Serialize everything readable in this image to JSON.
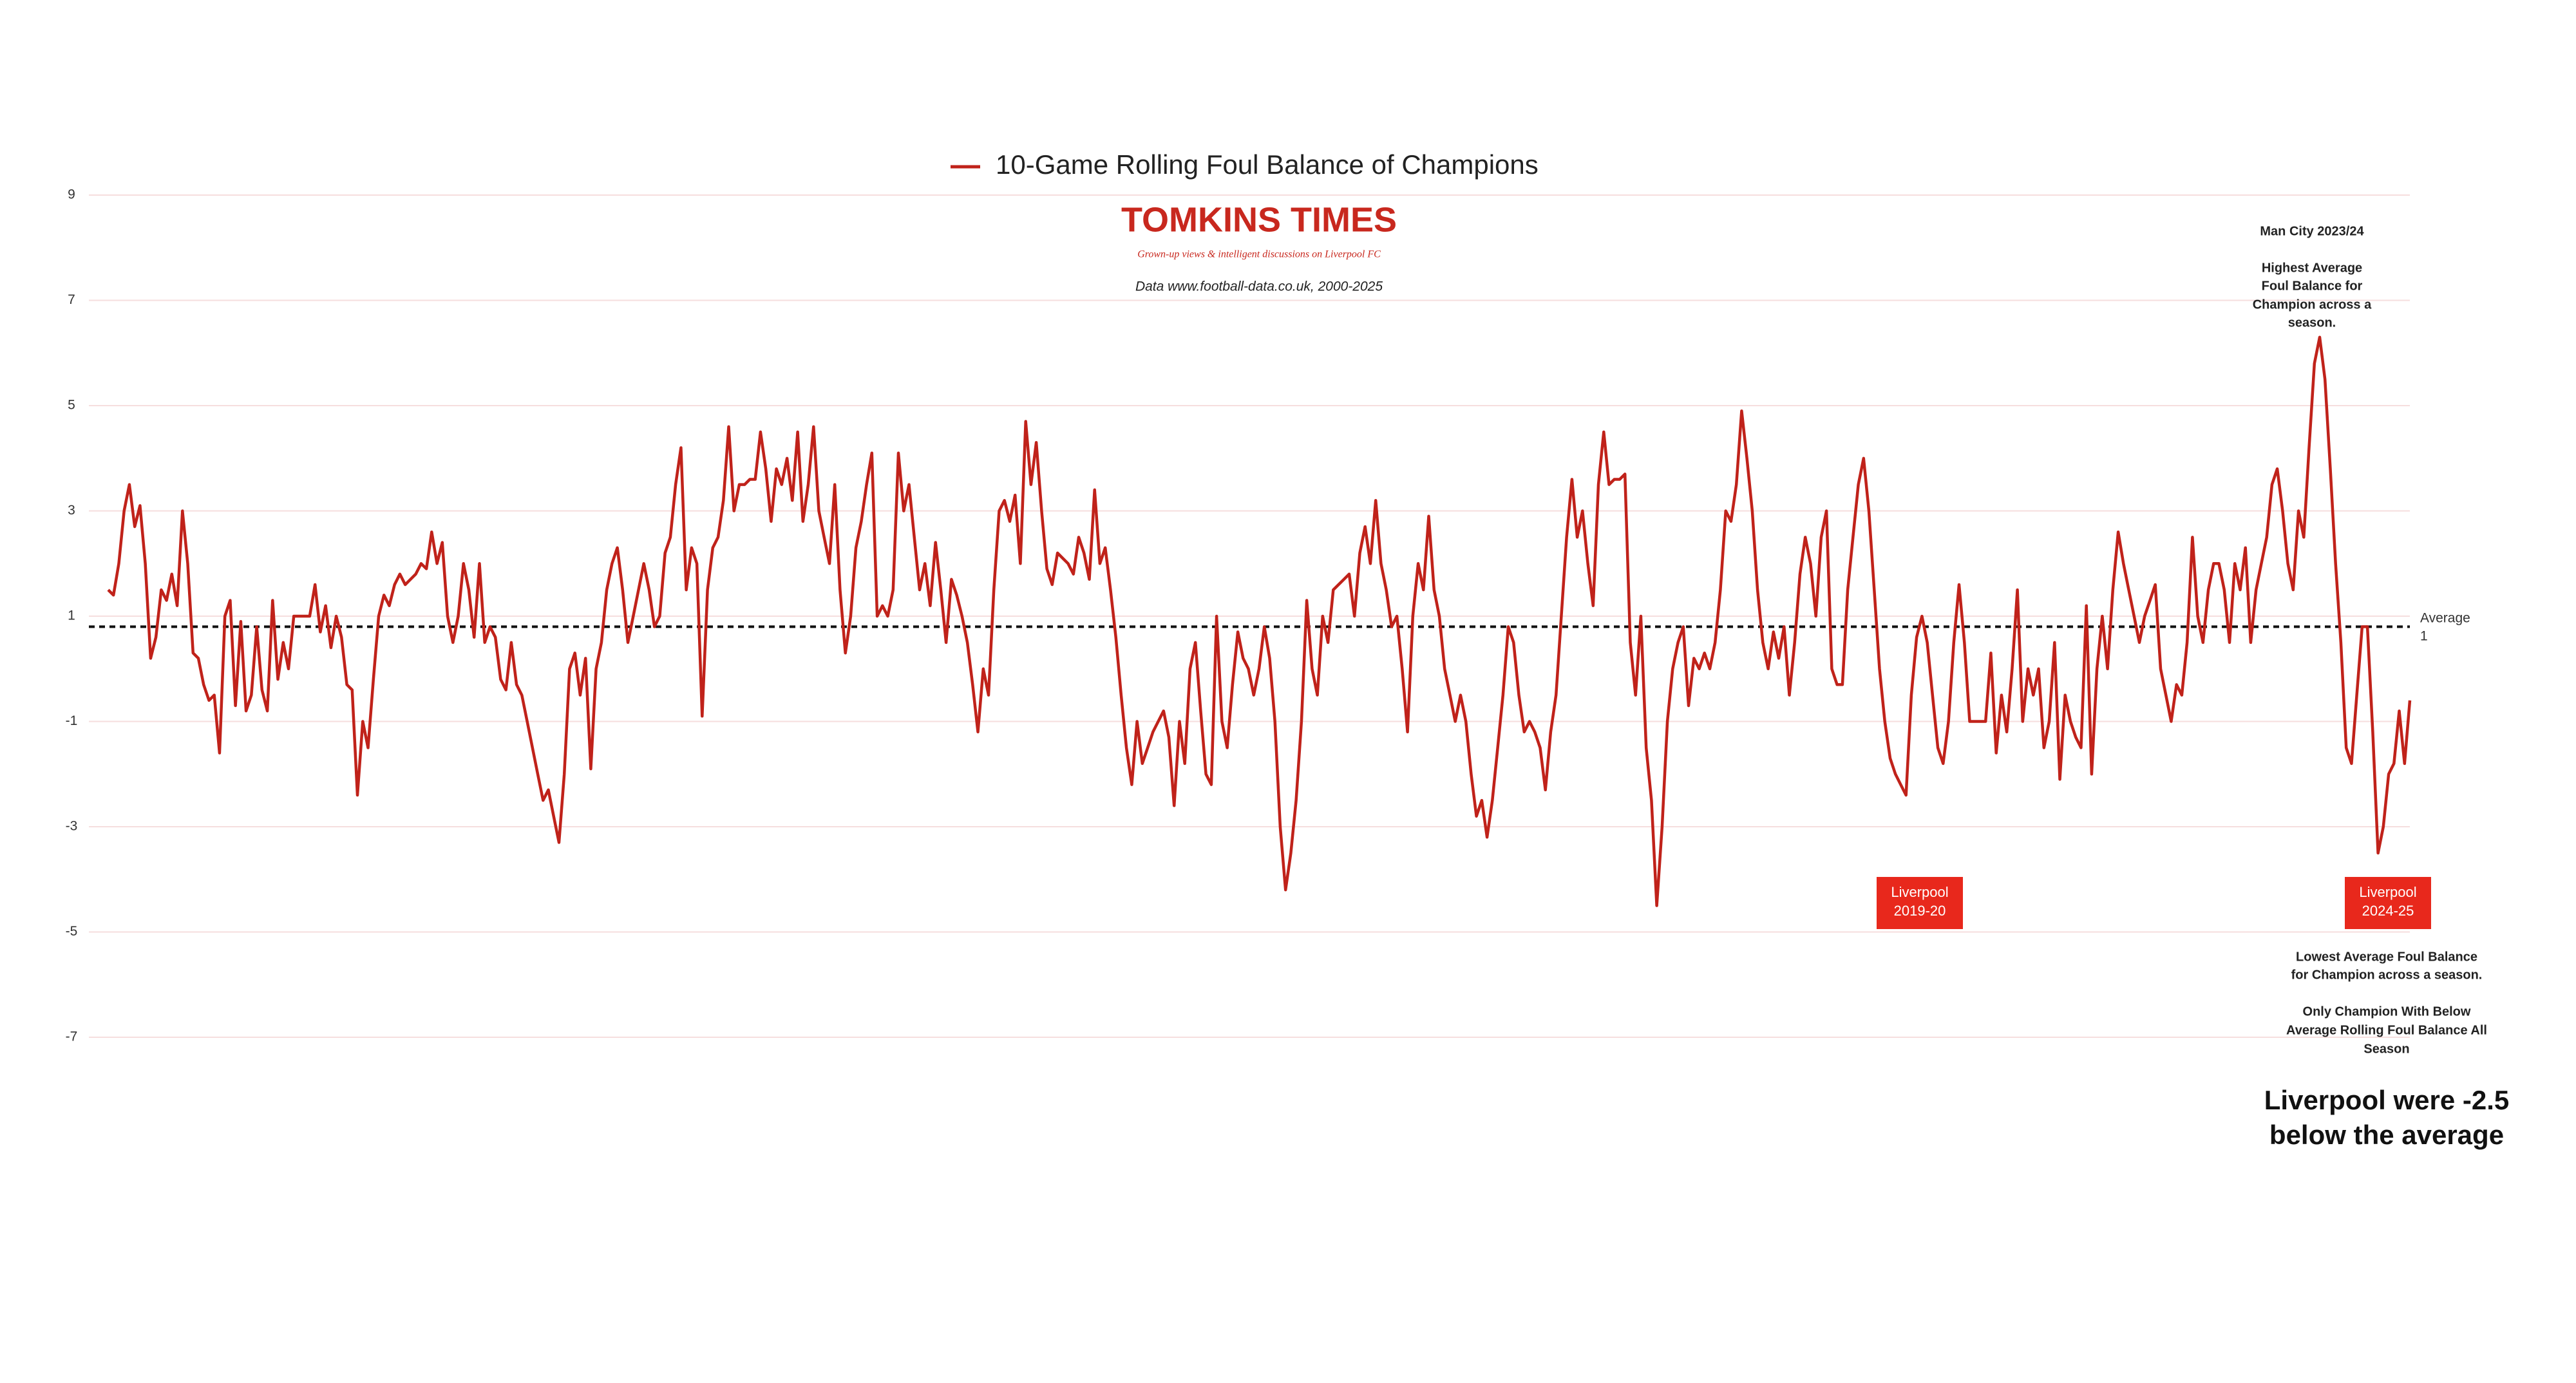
{
  "chart_data": {
    "type": "line",
    "logo": {
      "title": "TOMKINS TIMES",
      "tagline": "Grown-up views & intelligent discussions on Liverpool FC"
    },
    "source": "Data www.football-data.co.uk, 2000-2025",
    "series": [
      {
        "name": "10-Game Rolling Foul Balance of Champions",
        "color": "#c0221a",
        "values": [
          1.5,
          1.4,
          2.0,
          3.0,
          3.5,
          2.7,
          3.1,
          2.0,
          0.2,
          0.6,
          1.5,
          1.3,
          1.8,
          1.2,
          3.0,
          2.0,
          0.3,
          0.2,
          -0.3,
          -0.6,
          -0.5,
          -1.6,
          1.0,
          1.3,
          -0.7,
          0.9,
          -0.8,
          -0.5,
          0.8,
          -0.4,
          -0.8,
          1.3,
          -0.2,
          0.5,
          0.0,
          1.0,
          1.0,
          1.0,
          1.0,
          1.6,
          0.7,
          1.2,
          0.4,
          1.0,
          0.6,
          -0.3,
          -0.4,
          -2.4,
          -1.0,
          -1.5,
          -0.2,
          1.0,
          1.4,
          1.2,
          1.6,
          1.8,
          1.6,
          1.7,
          1.8,
          2.0,
          1.9,
          2.6,
          2.0,
          2.4,
          1.0,
          0.5,
          1.0,
          2.0,
          1.5,
          0.6,
          2.0,
          0.5,
          0.8,
          0.6,
          -0.2,
          -0.4,
          0.5,
          -0.3,
          -0.5,
          -1.0,
          -1.5,
          -2.0,
          -2.5,
          -2.3,
          -2.8,
          -3.3,
          -2.0,
          0.0,
          0.3,
          -0.5,
          0.2,
          -1.9,
          0.0,
          0.5,
          1.5,
          2.0,
          2.3,
          1.5,
          0.5,
          1.0,
          1.5,
          2.0,
          1.5,
          0.8,
          1.0,
          2.2,
          2.5,
          3.5,
          4.2,
          1.5,
          2.3,
          2.0,
          -0.9,
          1.5,
          2.3,
          2.5,
          3.2,
          4.6,
          3.0,
          3.5,
          3.5,
          3.6,
          3.6,
          4.5,
          3.8,
          2.8,
          3.8,
          3.5,
          4.0,
          3.2,
          4.5,
          2.8,
          3.5,
          4.6,
          3.0,
          2.5,
          2.0,
          3.5,
          1.5,
          0.3,
          1.0,
          2.3,
          2.8,
          3.5,
          4.1,
          1.0,
          1.2,
          1.0,
          1.5,
          4.1,
          3.0,
          3.5,
          2.5,
          1.5,
          2.0,
          1.2,
          2.4,
          1.5,
          0.5,
          1.7,
          1.4,
          1.0,
          0.5,
          -0.3,
          -1.2,
          0.0,
          -0.5,
          1.5,
          3.0,
          3.2,
          2.8,
          3.3,
          2.0,
          4.7,
          3.5,
          4.3,
          3.0,
          1.9,
          1.6,
          2.2,
          2.1,
          2.0,
          1.8,
          2.5,
          2.2,
          1.7,
          3.4,
          2.0,
          2.3,
          1.5,
          0.6,
          -0.5,
          -1.5,
          -2.2,
          -1.0,
          -1.8,
          -1.5,
          -1.2,
          -1.0,
          -0.8,
          -1.3,
          -2.6,
          -1.0,
          -1.8,
          0.0,
          0.5,
          -0.8,
          -2.0,
          -2.2,
          1.0,
          -1.0,
          -1.5,
          -0.3,
          0.7,
          0.2,
          0.0,
          -0.5,
          0.0,
          0.8,
          0.2,
          -1.0,
          -3.0,
          -4.2,
          -3.5,
          -2.5,
          -1.0,
          1.3,
          0.0,
          -0.5,
          1.0,
          0.5,
          1.5,
          1.6,
          1.7,
          1.8,
          1.0,
          2.2,
          2.7,
          2.0,
          3.2,
          2.0,
          1.5,
          0.8,
          1.0,
          0.0,
          -1.2,
          1.0,
          2.0,
          1.5,
          2.9,
          1.5,
          1.0,
          0.0,
          -0.5,
          -1.0,
          -0.5,
          -1.0,
          -2.0,
          -2.8,
          -2.5,
          -3.2,
          -2.5,
          -1.5,
          -0.5,
          0.8,
          0.5,
          -0.5,
          -1.2,
          -1.0,
          -1.2,
          -1.5,
          -2.3,
          -1.2,
          -0.5,
          1.0,
          2.5,
          3.6,
          2.5,
          3.0,
          2.0,
          1.2,
          3.5,
          4.5,
          3.5,
          3.6,
          3.6,
          3.7,
          0.5,
          -0.5,
          1.0,
          -1.5,
          -2.5,
          -4.5,
          -3.0,
          -1.0,
          0.0,
          0.5,
          0.8,
          -0.7,
          0.2,
          0.0,
          0.3,
          0.0,
          0.5,
          1.5,
          3.0,
          2.8,
          3.5,
          4.9,
          4.0,
          3.0,
          1.5,
          0.5,
          0.0,
          0.7,
          0.2,
          0.8,
          -0.5,
          0.5,
          1.8,
          2.5,
          2.0,
          1.0,
          2.5,
          3.0,
          0.0,
          -0.3,
          -0.3,
          1.5,
          2.5,
          3.5,
          4.0,
          3.0,
          1.5,
          0.0,
          -1.0,
          -1.7,
          -2.0,
          -2.2,
          -2.4,
          -0.5,
          0.6,
          1.0,
          0.5,
          -0.5,
          -1.5,
          -1.8,
          -1.0,
          0.5,
          1.6,
          0.5,
          -1.0,
          -1.0,
          -1.0,
          -1.0,
          0.3,
          -1.6,
          -0.5,
          -1.2,
          0.0,
          1.5,
          -1.0,
          0.0,
          -0.5,
          0.0,
          -1.5,
          -1.0,
          0.5,
          -2.1,
          -0.5,
          -1.0,
          -1.3,
          -1.5,
          1.2,
          -2.0,
          0.0,
          1.0,
          0.0,
          1.5,
          2.6,
          2.0,
          1.5,
          1.0,
          0.5,
          1.0,
          1.3,
          1.6,
          0.0,
          -0.5,
          -1.0,
          -0.3,
          -0.5,
          0.5,
          2.5,
          1.0,
          0.5,
          1.5,
          2.0,
          2.0,
          1.5,
          0.5,
          2.0,
          1.5,
          2.3,
          0.5,
          1.5,
          2.0,
          2.5,
          3.5,
          3.8,
          3.0,
          2.0,
          1.5,
          3.0,
          2.5,
          4.2,
          5.8,
          6.3,
          5.5,
          3.8,
          2.0,
          0.5,
          -1.5,
          -1.8,
          -0.5,
          0.8,
          0.8,
          -1.2,
          -3.5,
          -3.0,
          -2.0,
          -1.8,
          -0.8,
          -1.8,
          -0.6
        ]
      }
    ],
    "ylim": [
      -7,
      9
    ],
    "yticks": [
      9,
      7,
      5,
      3,
      1,
      -1,
      -3,
      -5,
      -7
    ],
    "grid": true,
    "average": {
      "name": "Average",
      "value": 0.8,
      "label": "1"
    },
    "annotations": {
      "top_right": [
        "Man City 2023/24",
        "Highest Average",
        "Foul Balance for",
        "Champion across a",
        "season."
      ],
      "boxes": [
        [
          "Liverpool",
          "2019-20"
        ],
        [
          "Liverpool",
          "2024-25"
        ]
      ],
      "lowest": [
        "Lowest Average Foul Balance",
        "for Champion across a season."
      ],
      "only": [
        "Only Champion With Below",
        "Average Rolling Foul Balance All",
        "Season"
      ],
      "headline": [
        "Liverpool were -2.5",
        "below the average"
      ]
    }
  }
}
